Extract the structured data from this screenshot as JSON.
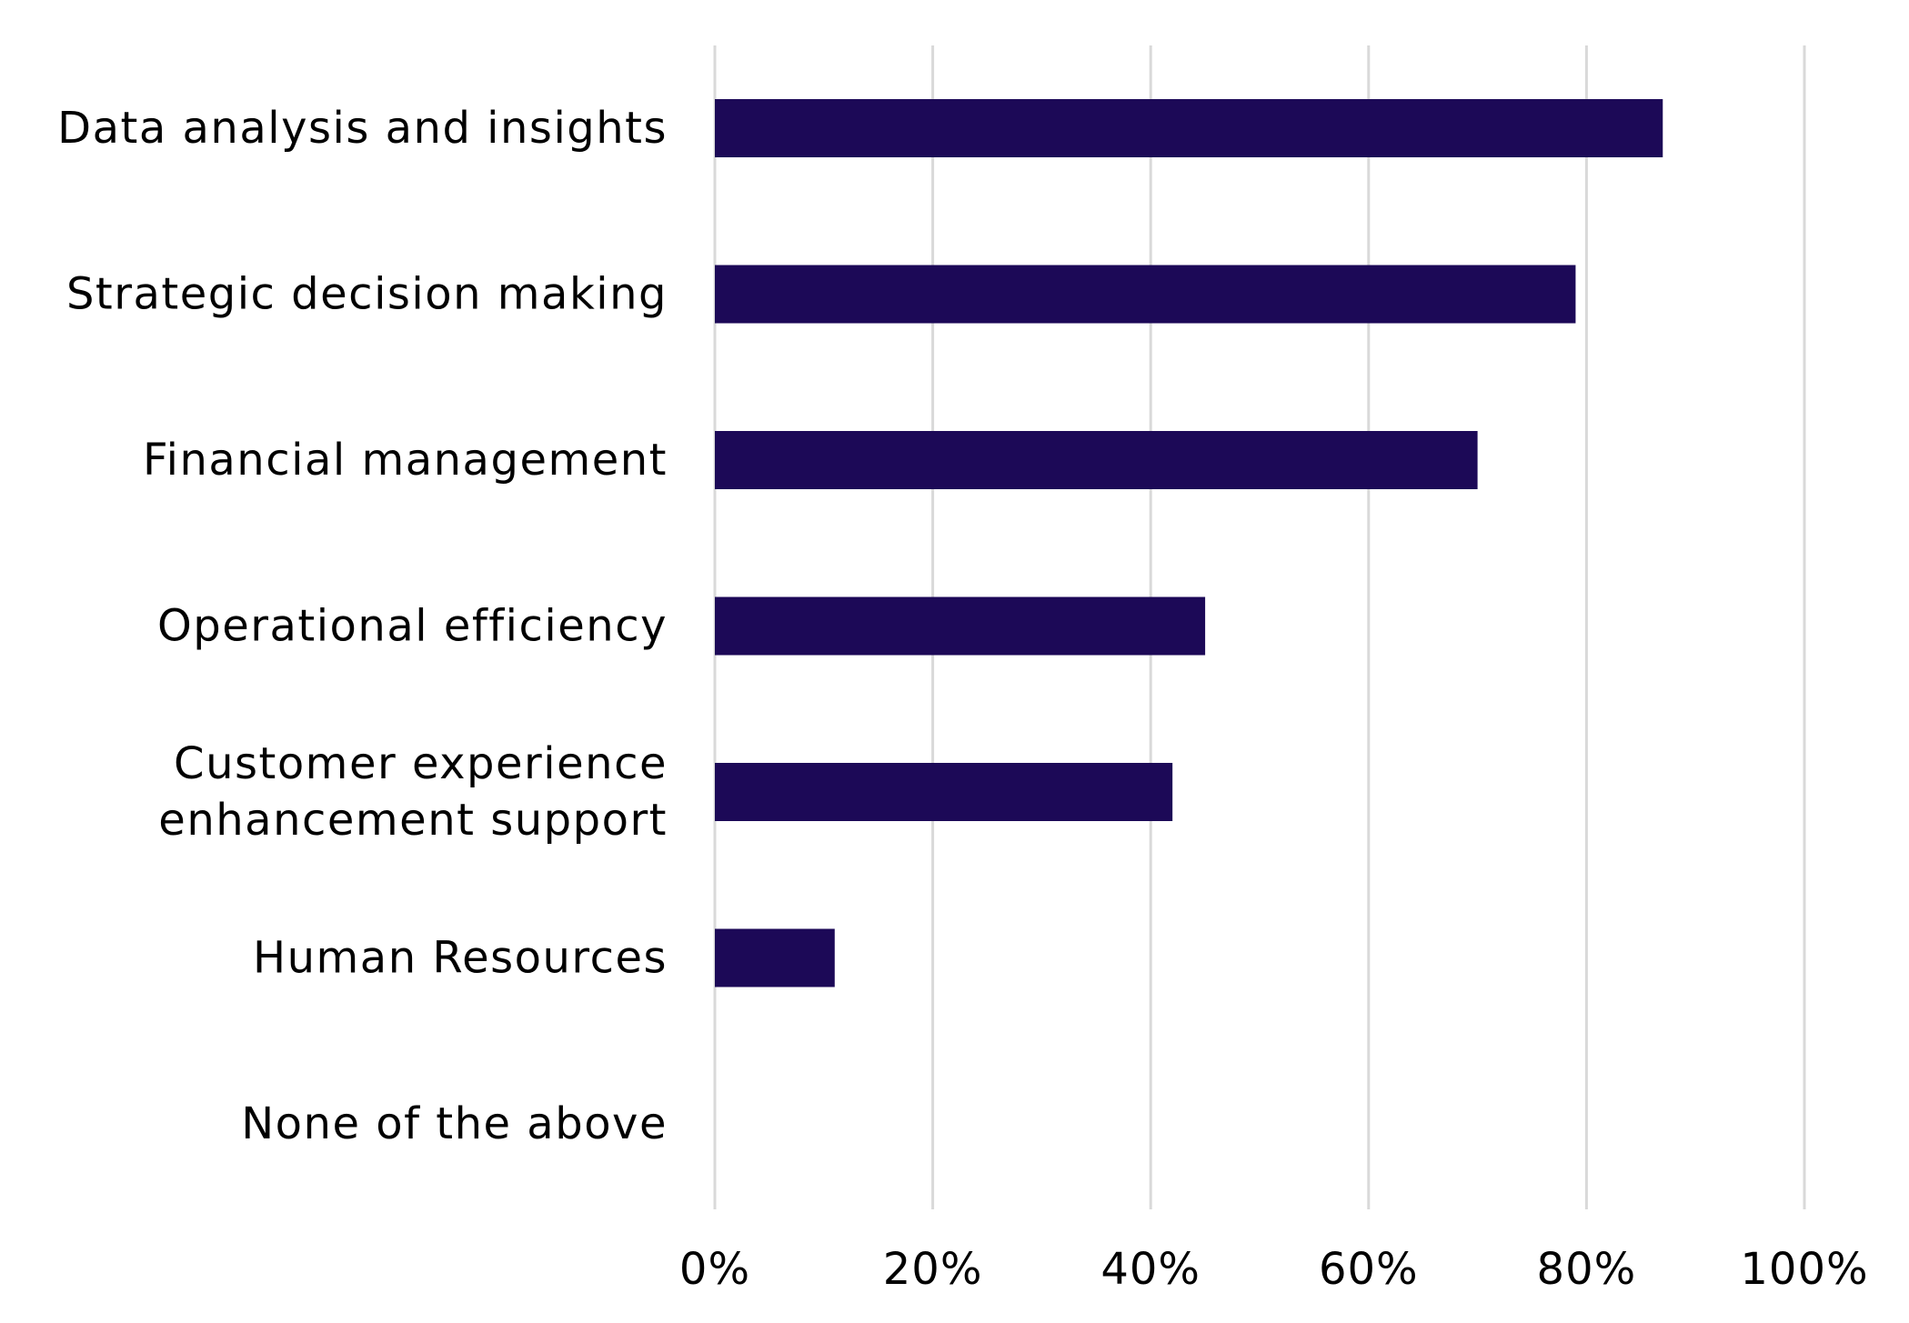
{
  "chart_data": {
    "type": "bar",
    "orientation": "horizontal",
    "title": "",
    "xlabel": "",
    "ylabel": "",
    "categories": [
      [
        "Data analysis and insights"
      ],
      [
        "Strategic decision making"
      ],
      [
        "Financial management"
      ],
      [
        "Operational efficiency"
      ],
      [
        "Customer experience",
        "enhancement support"
      ],
      [
        "Human Resources"
      ],
      [
        "None of the above"
      ]
    ],
    "values": [
      87,
      79,
      70,
      45,
      42,
      11,
      0
    ],
    "xlim": [
      0,
      100
    ],
    "x_ticks": [
      0,
      20,
      40,
      60,
      80,
      100
    ],
    "x_tick_labels": [
      "0%",
      "20%",
      "40%",
      "60%",
      "80%",
      "100%"
    ],
    "grid": true,
    "legend": "none",
    "colors": {
      "bar": "#1c0957",
      "grid": "#d9d9d9",
      "text": "#000000"
    }
  }
}
